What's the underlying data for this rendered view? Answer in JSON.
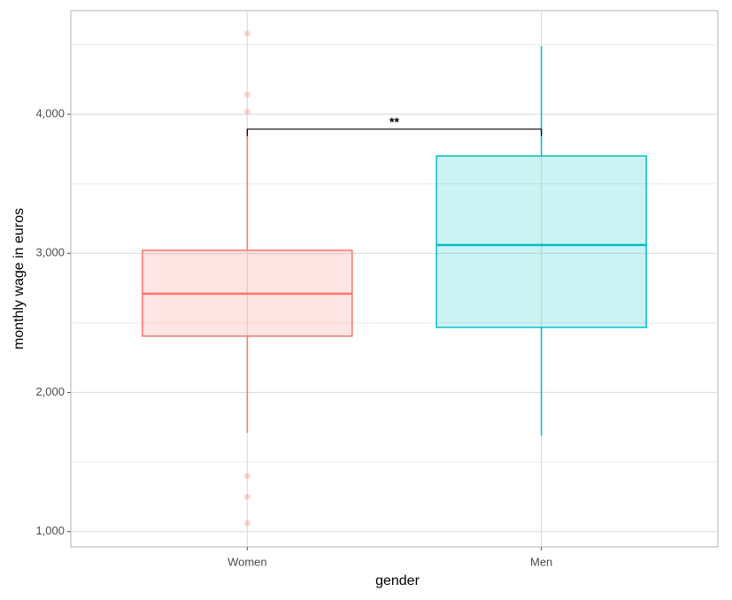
{
  "chart_data": {
    "type": "box",
    "xlabel": "gender",
    "ylabel": "monthly wage in euros",
    "categories": [
      "Women",
      "Men"
    ],
    "boxes": [
      {
        "color": "#F8766D",
        "whisker_low": 1710,
        "q1": 2405,
        "median": 2710,
        "q3": 3022,
        "whisker_high": 3890,
        "outliers": [
          4580,
          4140,
          4020,
          1400,
          1250,
          1060
        ]
      },
      {
        "color": "#00BFC4",
        "whisker_low": 1690,
        "q1": 2468,
        "median": 3060,
        "q3": 3700,
        "whisker_high": 4490,
        "outliers": []
      }
    ],
    "annotation": {
      "text": "**",
      "y": 3893
    },
    "ylim": [
      890,
      4745
    ],
    "yticks": [
      {
        "value": 1000,
        "label": "1,000"
      },
      {
        "value": 2000,
        "label": "2,000"
      },
      {
        "value": 3000,
        "label": "3,000"
      },
      {
        "value": 4000,
        "label": "4,000"
      }
    ],
    "minor_yticks": [
      1500,
      2500,
      3500,
      4500
    ],
    "grid": true
  }
}
